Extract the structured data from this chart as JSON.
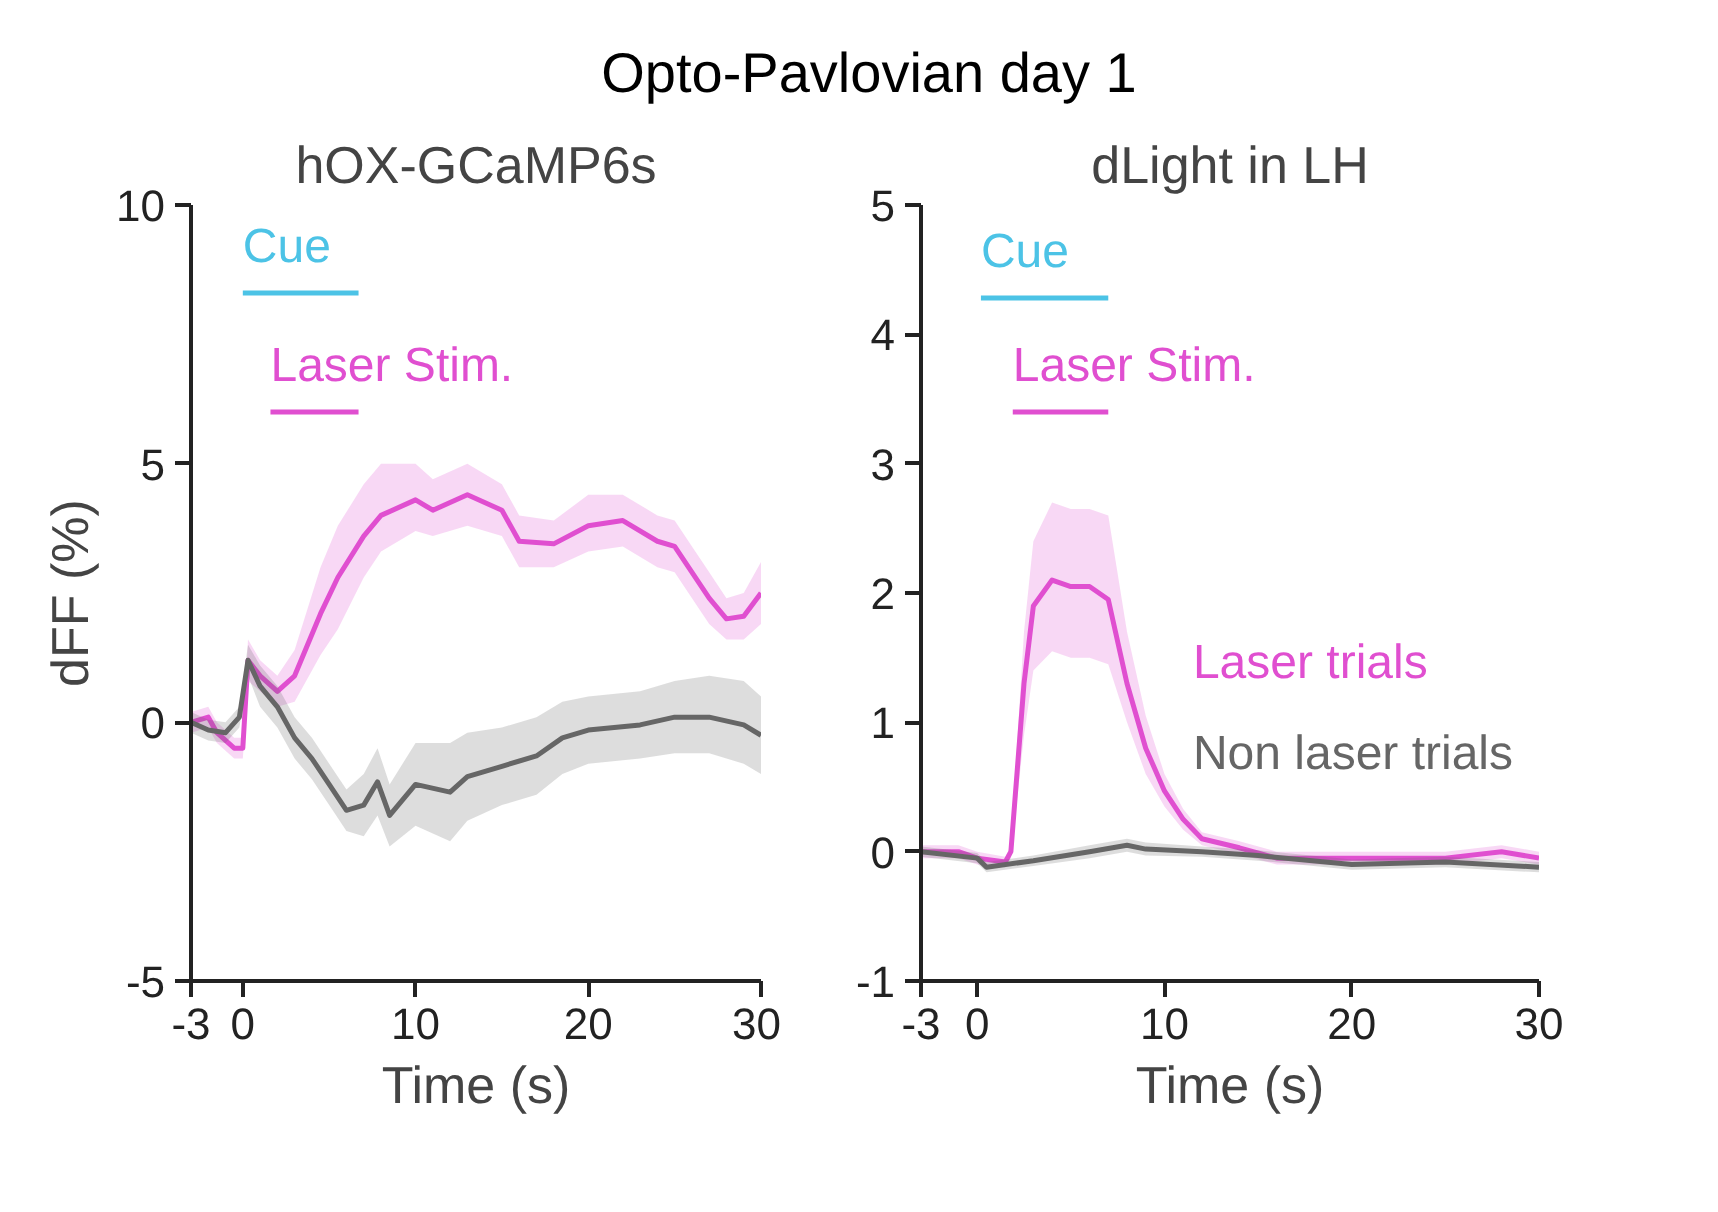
{
  "chart_data": [
    {
      "type": "line",
      "title": "Opto-Pavlovian day 1",
      "subtitle": "hOX-GCaMP6s",
      "xlabel": "Time (s)",
      "ylabel": "dFF (%)",
      "xlim": [
        -3,
        30
      ],
      "xticks": [
        -3,
        0,
        10,
        20,
        30
      ],
      "ylim": [
        -5,
        10
      ],
      "yticks": [
        -5,
        0,
        5,
        10
      ],
      "grid": false,
      "series": [
        {
          "name": "Cue",
          "color": "#4cc3e6",
          "x": [
            0,
            6.7
          ],
          "values": [
            8.3,
            8.3
          ]
        },
        {
          "name": "Laser Stim.",
          "color": "#e04fd0",
          "x": [
            1.6,
            6.7
          ],
          "values": [
            6.0,
            6.0
          ]
        },
        {
          "color": "#e04fd0",
          "x": [
            -3,
            -2,
            -1.5,
            -0.5,
            0,
            0.3,
            1,
            2,
            3,
            4.5,
            5.5,
            7,
            8,
            10,
            11,
            13,
            15,
            16,
            18,
            20,
            22,
            24,
            25,
            27,
            28,
            29,
            30
          ],
          "values": [
            0,
            0.1,
            -0.2,
            -0.5,
            -0.5,
            1.2,
            0.9,
            0.6,
            0.9,
            2.1,
            2.8,
            3.6,
            4.0,
            4.3,
            4.1,
            4.4,
            4.1,
            3.5,
            3.45,
            3.8,
            3.9,
            3.5,
            3.4,
            2.4,
            2.0,
            2.05,
            2.5
          ],
          "lower": [
            -0.2,
            -0.1,
            -0.4,
            -0.7,
            -0.7,
            0.8,
            0.6,
            0.3,
            0.4,
            1.3,
            1.8,
            2.8,
            3.3,
            3.7,
            3.6,
            3.8,
            3.6,
            3.0,
            3.0,
            3.3,
            3.4,
            3.0,
            2.9,
            1.9,
            1.6,
            1.6,
            1.9
          ],
          "upper": [
            0.2,
            0.3,
            0.0,
            -0.3,
            -0.3,
            1.6,
            1.2,
            0.9,
            1.4,
            3.0,
            3.8,
            4.6,
            5.0,
            5.0,
            4.7,
            5.0,
            4.6,
            4.0,
            3.9,
            4.4,
            4.4,
            4.0,
            3.9,
            2.9,
            2.4,
            2.5,
            3.1
          ]
        },
        {
          "color": "#666666",
          "x": [
            -3,
            -2,
            -1,
            -0.2,
            0.3,
            1,
            2,
            3,
            4,
            5,
            6,
            7,
            7.8,
            8.5,
            10,
            12,
            13,
            15,
            17,
            18.5,
            20,
            23,
            25,
            27,
            29,
            30
          ],
          "values": [
            0,
            -0.15,
            -0.2,
            0.1,
            1.2,
            0.7,
            0.3,
            -0.3,
            -0.7,
            -1.2,
            -1.7,
            -1.6,
            -1.15,
            -1.8,
            -1.2,
            -1.35,
            -1.05,
            -0.85,
            -0.65,
            -0.3,
            -0.15,
            -0.05,
            0.1,
            0.1,
            -0.05,
            -0.25
          ],
          "lower": [
            -0.2,
            -0.35,
            -0.4,
            -0.1,
            0.9,
            0.3,
            -0.1,
            -0.7,
            -1.1,
            -1.6,
            -2.1,
            -2.2,
            -1.8,
            -2.4,
            -2.0,
            -2.3,
            -1.9,
            -1.6,
            -1.4,
            -1.0,
            -0.8,
            -0.7,
            -0.6,
            -0.6,
            -0.8,
            -1.0
          ],
          "upper": [
            0.2,
            0.05,
            0.0,
            0.3,
            1.5,
            1.1,
            0.7,
            0.1,
            -0.3,
            -0.8,
            -1.3,
            -1.0,
            -0.5,
            -1.2,
            -0.4,
            -0.4,
            -0.2,
            -0.1,
            0.1,
            0.4,
            0.5,
            0.6,
            0.8,
            0.9,
            0.8,
            0.5
          ]
        }
      ]
    },
    {
      "type": "line",
      "title": "dLight in LH",
      "xlabel": "Time (s)",
      "xlim": [
        -3,
        30
      ],
      "xticks": [
        -3,
        0,
        10,
        20,
        30
      ],
      "ylim": [
        -1,
        5
      ],
      "yticks": [
        -1,
        0,
        1,
        2,
        3,
        4,
        5
      ],
      "grid": false,
      "series": [
        {
          "name": "Cue",
          "color": "#4cc3e6",
          "x": [
            0.2,
            7
          ],
          "values": [
            4.28,
            4.28
          ]
        },
        {
          "name": "Laser Stim.",
          "color": "#e04fd0",
          "x": [
            1.9,
            7
          ],
          "values": [
            3.4,
            3.4
          ]
        },
        {
          "name": "Laser trials",
          "color": "#e04fd0",
          "x": [
            -3,
            -1,
            0,
            1.5,
            1.8,
            2.5,
            3,
            4,
            5,
            6,
            7,
            8,
            9,
            10,
            11,
            12,
            14,
            16,
            20,
            25,
            28,
            30
          ],
          "values": [
            0,
            0,
            -0.05,
            -0.08,
            0,
            1.3,
            1.9,
            2.1,
            2.05,
            2.05,
            1.95,
            1.3,
            0.8,
            0.47,
            0.25,
            0.1,
            0.03,
            -0.05,
            -0.05,
            -0.05,
            0,
            -0.05
          ],
          "lower": [
            -0.05,
            -0.05,
            -0.1,
            -0.12,
            -0.05,
            0.9,
            1.4,
            1.55,
            1.5,
            1.5,
            1.45,
            1.0,
            0.6,
            0.35,
            0.17,
            0.05,
            -0.02,
            -0.1,
            -0.1,
            -0.1,
            -0.05,
            -0.1
          ],
          "upper": [
            0.05,
            0.05,
            0.0,
            -0.04,
            0.05,
            1.7,
            2.4,
            2.7,
            2.65,
            2.65,
            2.6,
            1.7,
            1.05,
            0.6,
            0.33,
            0.15,
            0.08,
            0.0,
            0.0,
            0.0,
            0.05,
            0.0
          ]
        },
        {
          "name": "Non laser trials",
          "color": "#666666",
          "x": [
            -3,
            0,
            0.5,
            3,
            6,
            8,
            9,
            12,
            15,
            20,
            25,
            30
          ],
          "values": [
            0,
            -0.05,
            -0.12,
            -0.07,
            0.0,
            0.05,
            0.02,
            0.0,
            -0.03,
            -0.1,
            -0.08,
            -0.12
          ],
          "lower": [
            -0.04,
            -0.09,
            -0.16,
            -0.11,
            -0.05,
            0.0,
            -0.03,
            -0.04,
            -0.07,
            -0.14,
            -0.12,
            -0.16
          ],
          "upper": [
            0.04,
            -0.01,
            -0.08,
            -0.03,
            0.05,
            0.1,
            0.07,
            0.04,
            0.01,
            -0.06,
            -0.04,
            -0.08
          ]
        }
      ]
    }
  ]
}
